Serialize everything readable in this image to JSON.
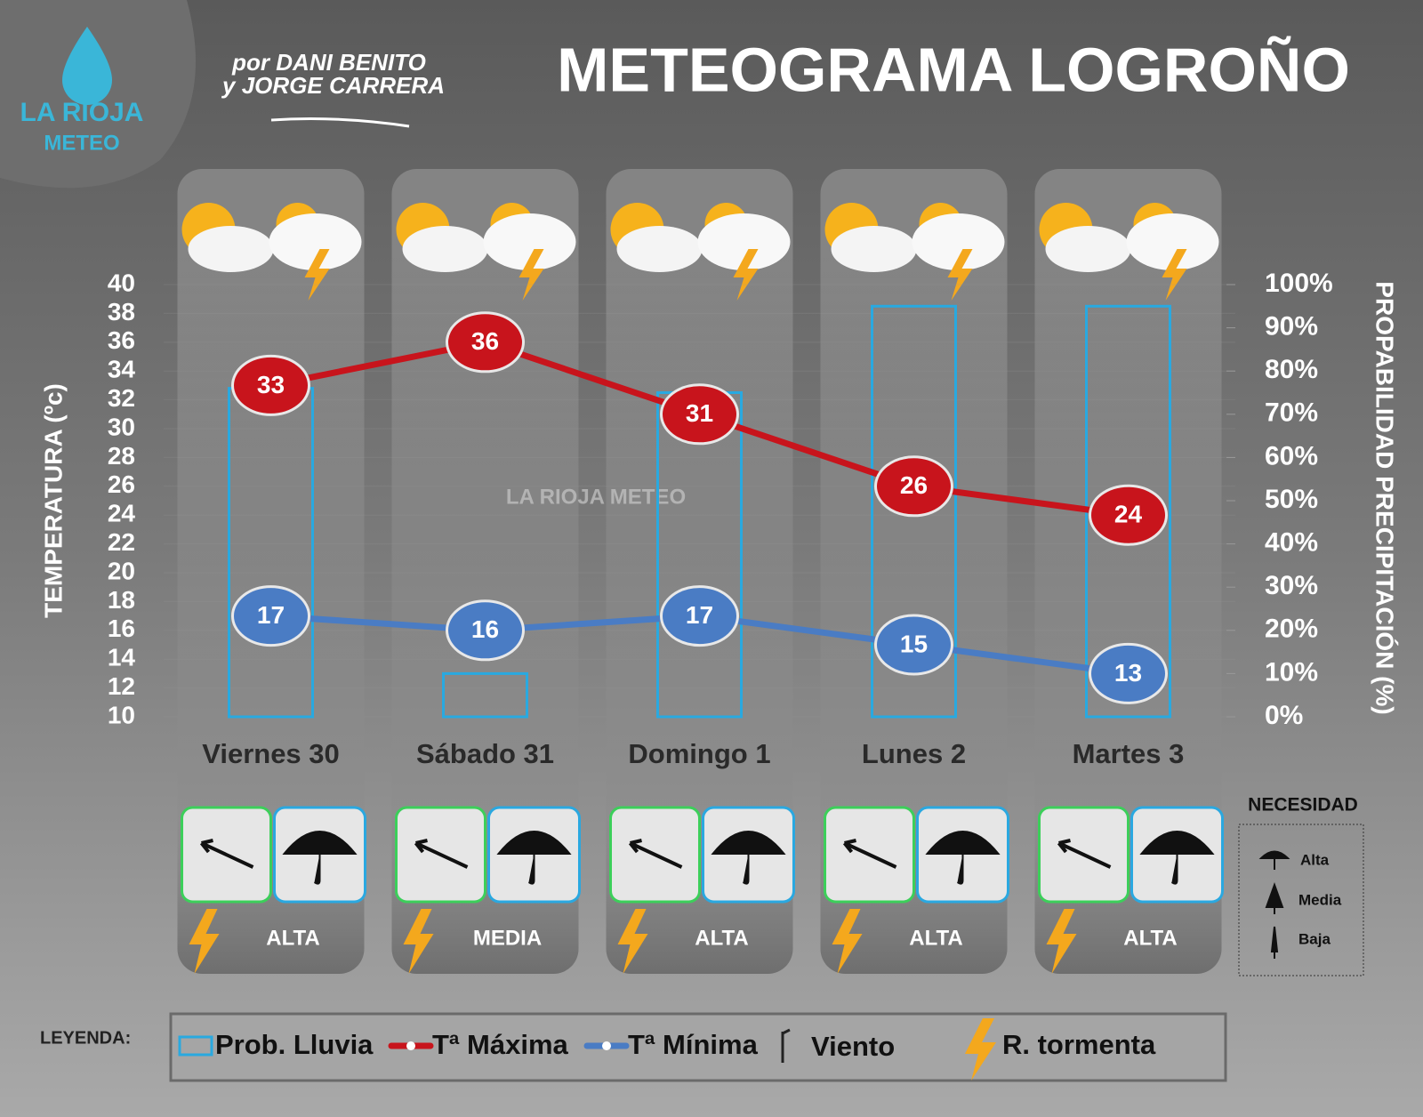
{
  "logo": {
    "name": "LA RIOJA",
    "sub": "METEO"
  },
  "byline": [
    "por DANI BENITO",
    "y JORGE CARRERA"
  ],
  "watermark": "LA RIOJA METEO",
  "chart_data": {
    "type": "combo",
    "title": "METEOGRAMA LOGROÑO",
    "y_label": "TEMPERATURA (ºc)",
    "y2_label": "PROPABILIDAD PRECIPITACIÓN (%)",
    "categories": [
      "Viernes 30",
      "Sábado 31",
      "Domingo 1",
      "Lunes 2",
      "Martes 3"
    ],
    "ylim": [
      10,
      40
    ],
    "yticks": [
      10,
      12,
      14,
      16,
      18,
      20,
      22,
      24,
      26,
      28,
      30,
      32,
      34,
      36,
      38,
      40
    ],
    "y2lim": [
      0,
      100
    ],
    "y2ticks": [
      {
        "value": 0,
        "label": "0%"
      },
      {
        "value": 10,
        "label": "10%"
      },
      {
        "value": 20,
        "label": "20%"
      },
      {
        "value": 30,
        "label": "30%"
      },
      {
        "value": 40,
        "label": "40%"
      },
      {
        "value": 50,
        "label": "50%"
      },
      {
        "value": 60,
        "label": "60%"
      },
      {
        "value": 70,
        "label": "70%"
      },
      {
        "value": 80,
        "label": "80%"
      },
      {
        "value": 90,
        "label": "90%"
      },
      {
        "value": 100,
        "label": "100%"
      }
    ],
    "series": [
      {
        "name": "Prob. Lluvia",
        "kind": "bar",
        "axis": "y2",
        "color": "#29a9e0",
        "values": [
          76,
          10,
          75,
          95,
          95
        ]
      },
      {
        "name": "Tª Máxima",
        "kind": "line",
        "color": "#c8141c",
        "values": [
          33,
          36,
          31,
          26,
          24
        ]
      },
      {
        "name": "Tª Mínima",
        "kind": "line",
        "color": "#4a7cc4",
        "values": [
          17,
          16,
          17,
          15,
          13
        ]
      }
    ],
    "storm_risk": [
      "ALTA",
      "MEDIA",
      "ALTA",
      "ALTA",
      "ALTA"
    ],
    "legend_title": "LEYENDA:",
    "legend_extra": [
      "Viento",
      "R. tormenta"
    ],
    "need": {
      "title": "NECESIDAD",
      "levels": [
        "Alta",
        "Media",
        "Baja"
      ]
    }
  }
}
